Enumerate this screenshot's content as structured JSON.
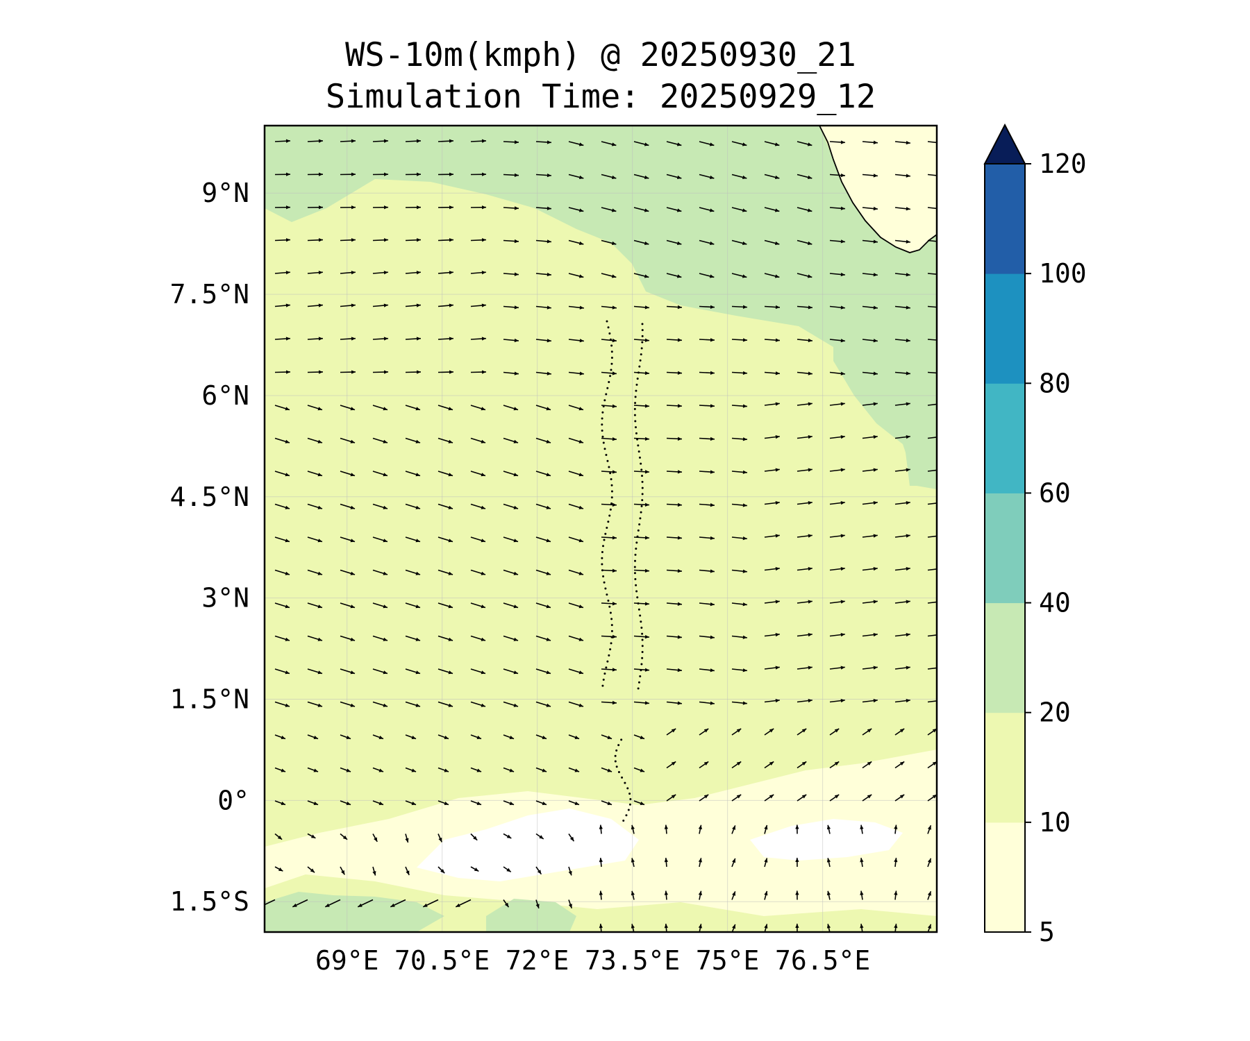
{
  "title": "WS-10m(kmph) @ 20250930_21",
  "subtitle": "Simulation Time: 20250929_12",
  "chart_data": {
    "type": "heatmap",
    "title": "WS-10m(kmph) @ 20250930_21",
    "subtitle": "Simulation Time: 20250929_12",
    "variable": "10 m wind speed",
    "units": "kmph",
    "xlim": [
      67.7,
      78.3
    ],
    "ylim": [
      -1.95,
      10.0
    ],
    "x_ticks": [
      69,
      70.5,
      72,
      73.5,
      75,
      76.5
    ],
    "x_tick_labels": [
      "69°E",
      "70.5°E",
      "72°E",
      "73.5°E",
      "75°E",
      "76.5°E"
    ],
    "y_ticks": [
      9,
      7.5,
      6,
      4.5,
      3,
      1.5,
      0,
      -1.5
    ],
    "y_tick_labels": [
      "9°N",
      "7.5°N",
      "6°N",
      "4.5°N",
      "3°N",
      "1.5°N",
      "0°",
      "1.5°S"
    ],
    "grid": true,
    "colorbar": {
      "levels": [
        5,
        10,
        20,
        40,
        60,
        80,
        100,
        120
      ],
      "tick_labels": [
        "5",
        "10",
        "20",
        "40",
        "60",
        "80",
        "100",
        "120"
      ],
      "colors": [
        "#ffffd9",
        "#edf8b1",
        "#c7e9b4",
        "#7fcdbb",
        "#41b6c4",
        "#1d91c0",
        "#225ea8",
        "#0c2c84"
      ],
      "extend": "max",
      "extend_color": "#081d58",
      "position": "right"
    },
    "regions": [
      {
        "name": "background",
        "speed_band": "10-20",
        "color": "#edf8b1"
      },
      {
        "name": "northern band",
        "speed_band": "20-40",
        "color": "#c7e9b4"
      },
      {
        "name": "eastern band",
        "speed_band": "20-40",
        "color": "#c7e9b4"
      },
      {
        "name": "equatorial calm band",
        "speed_band": "5-10",
        "color": "#ffffd9"
      },
      {
        "name": "calm patches",
        "speed_band": "<5",
        "color": "#ffffff"
      },
      {
        "name": "southwest patch",
        "speed_band": "20-40",
        "color": "#c7e9b4"
      }
    ],
    "vectors": "10 m wind direction arrows on a regular grid",
    "coastline": "southern India and Sri Lanka tip (top-right), Maldives atolls (dotted chain near 73.5°E)"
  }
}
